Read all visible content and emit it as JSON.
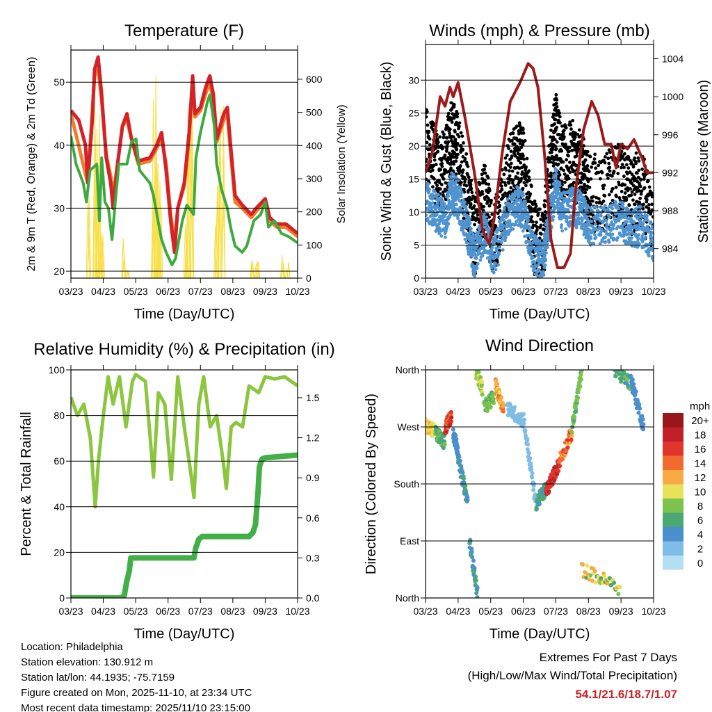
{
  "chart_data": [
    {
      "type": "line",
      "title": "Temperature (F)",
      "xlabel": "Time (Day/UTC)",
      "ylabel": "2m & 9m T (Red, Orange) & 2m Td (Green)",
      "y2label": "Solar Insolation (Yellow)",
      "xticks": [
        "03/23",
        "04/23",
        "05/23",
        "06/23",
        "07/23",
        "08/23",
        "09/23",
        "10/23"
      ],
      "yticks": [
        20,
        30,
        40,
        50
      ],
      "y2ticks": [
        0,
        100,
        200,
        300,
        400,
        500,
        600
      ],
      "ylim": [
        18.9,
        55.1
      ],
      "y2lim": [
        0,
        688
      ],
      "grid": true,
      "series": [
        {
          "name": "Solar Insolation",
          "axis": "y2",
          "color": "#f7e04a",
          "style": "spikes",
          "x": [
            0.55,
            0.72,
            0.78,
            0.85,
            0.95,
            1.62,
            1.75,
            2.55,
            2.62,
            2.68,
            2.75,
            3.55,
            3.65,
            3.75,
            4.5,
            4.6,
            4.7,
            5.6,
            5.75,
            6.55,
            6.7
          ],
          "y": [
            250,
            600,
            500,
            540,
            200,
            130,
            40,
            560,
            680,
            430,
            300,
            190,
            540,
            600,
            280,
            570,
            550,
            70,
            60,
            75,
            60
          ]
        },
        {
          "name": "9m T",
          "axis": "y",
          "color": "#f47b28",
          "width": 5,
          "x": [
            0,
            0.52,
            0.73,
            0.84,
            0.95,
            1.09,
            1.23,
            1.3,
            1.44,
            1.59,
            1.73,
            1.87,
            2.08,
            2.44,
            2.65,
            2.8,
            2.94,
            3.08,
            3.2,
            3.3,
            3.5,
            3.65,
            3.76,
            3.83,
            4.0,
            4.15,
            4.29,
            4.4,
            4.5,
            4.72,
            4.83,
            4.93,
            5.07,
            5.29,
            5.57,
            5.72,
            6.0,
            6.14,
            6.36,
            6.64,
            7.0
          ],
          "y": [
            45,
            34,
            51,
            52,
            47,
            38.5,
            35,
            32,
            37,
            43,
            44,
            41,
            37,
            37.5,
            39.5,
            41,
            37,
            29,
            24.5,
            30,
            33.5,
            41,
            50,
            44.5,
            45.5,
            48,
            50,
            47,
            40.5,
            44,
            45,
            39,
            31,
            30,
            28.5,
            29.5,
            31,
            28,
            27,
            27,
            25.5
          ]
        },
        {
          "name": "2m T",
          "axis": "y",
          "color": "#d42229",
          "width": 5,
          "x": [
            0,
            0.24,
            0.45,
            0.52,
            0.66,
            0.73,
            0.84,
            0.95,
            1.09,
            1.23,
            1.3,
            1.44,
            1.59,
            1.73,
            1.87,
            2.08,
            2.44,
            2.65,
            2.8,
            2.94,
            3.08,
            3.2,
            3.3,
            3.5,
            3.65,
            3.76,
            3.83,
            4.0,
            4.15,
            4.29,
            4.4,
            4.5,
            4.72,
            4.83,
            4.93,
            5.07,
            5.29,
            5.57,
            5.72,
            6.0,
            6.14,
            6.36,
            6.64,
            7.0
          ],
          "y": [
            45.5,
            44,
            40,
            34,
            44,
            52,
            54,
            48,
            38,
            34,
            30,
            37,
            43,
            45,
            41,
            37.5,
            38,
            40,
            42,
            36,
            28,
            23,
            30,
            34,
            42,
            51,
            45,
            46,
            49,
            51,
            48,
            41,
            45,
            46,
            40,
            32,
            30.5,
            29,
            30,
            31.5,
            28.5,
            27.5,
            27.5,
            26
          ]
        },
        {
          "name": "2m Td",
          "axis": "y",
          "color": "#3daa3f",
          "width": 4,
          "x": [
            0,
            0.16,
            0.38,
            0.48,
            0.59,
            0.8,
            0.88,
            0.95,
            1.05,
            1.16,
            1.27,
            1.37,
            1.48,
            1.73,
            1.87,
            2.01,
            2.12,
            2.44,
            2.55,
            2.69,
            2.8,
            2.94,
            3.12,
            3.23,
            3.44,
            3.58,
            3.79,
            3.86,
            4.0,
            4.22,
            4.29,
            4.43,
            4.5,
            4.65,
            4.83,
            4.93,
            5.07,
            5.29,
            5.43,
            5.65,
            5.86,
            6.0,
            6.1,
            6.28,
            6.5,
            6.72,
            7.0
          ],
          "y": [
            41.5,
            37,
            34,
            31,
            36,
            37,
            28,
            38,
            31,
            30,
            25,
            31,
            37,
            37,
            40.5,
            41,
            36,
            34,
            32,
            28,
            25,
            23,
            21,
            22,
            28,
            30.5,
            29,
            38,
            42,
            47,
            48,
            43,
            37,
            33,
            30,
            27,
            24,
            23,
            24,
            28,
            29,
            31,
            27,
            28,
            26,
            25.5,
            24.5
          ]
        }
      ]
    },
    {
      "type": "scatter",
      "title": "Winds (mph) & Pressure (mb)",
      "xlabel": "Time (Day/UTC)",
      "ylabel": "Sonic Wind & Gust (Blue, Black)",
      "y2label": "Station Pressure (Maroon)",
      "xticks": [
        "03/23",
        "04/23",
        "05/23",
        "06/23",
        "07/23",
        "08/23",
        "09/23",
        "10/23"
      ],
      "yticks": [
        0,
        5,
        10,
        15,
        20,
        25,
        30
      ],
      "y2ticks": [
        984,
        988,
        992,
        996,
        1000,
        1004
      ],
      "ylim": [
        0,
        35.4
      ],
      "y2lim": [
        980.9,
        1005.5
      ],
      "grid": true,
      "series": [
        {
          "name": "Gust",
          "axis": "y",
          "color": "#000000",
          "style": "scatter-band",
          "spread": 6,
          "x": [
            0,
            0.3,
            0.6,
            0.8,
            1.0,
            1.3,
            1.5,
            1.8,
            2.1,
            2.5,
            2.8,
            3.0,
            3.3,
            3.6,
            3.8,
            4.0,
            4.2,
            4.5,
            4.8,
            5.0,
            5.5,
            6.0,
            6.3,
            6.6,
            7.0
          ],
          "y": [
            20,
            17,
            16,
            22,
            19,
            12,
            6,
            12,
            6,
            15,
            18,
            17,
            7,
            4,
            15,
            23,
            17,
            18,
            16,
            13,
            13,
            15,
            12,
            14,
            8
          ]
        },
        {
          "name": "Sonic Wind",
          "axis": "y",
          "color": "#4f93cf",
          "style": "scatter-band",
          "spread": 3,
          "x": [
            0,
            0.3,
            0.6,
            0.8,
            1.0,
            1.3,
            1.5,
            1.8,
            2.1,
            2.5,
            2.8,
            3.0,
            3.3,
            3.6,
            3.8,
            4.0,
            4.2,
            4.5,
            4.8,
            5.0,
            5.5,
            6.0,
            6.3,
            6.6,
            7.0
          ],
          "y": [
            12,
            10,
            9,
            13,
            12,
            7,
            3,
            7,
            3,
            9,
            11,
            10,
            4,
            2,
            9,
            14,
            10,
            11,
            10,
            8,
            8,
            9,
            7,
            8,
            5
          ]
        },
        {
          "name": "Station Pressure",
          "axis": "y2",
          "color": "#9e1b1b",
          "width": 4,
          "x": [
            0,
            0.2,
            0.45,
            0.6,
            0.75,
            0.85,
            1.0,
            1.2,
            1.5,
            1.75,
            1.95,
            2.1,
            2.35,
            2.6,
            2.9,
            3.15,
            3.3,
            3.45,
            3.65,
            3.85,
            4.05,
            4.25,
            4.45,
            4.6,
            4.85,
            5.1,
            5.3,
            5.5,
            5.7,
            5.85,
            6.0,
            6.2,
            6.4,
            6.65,
            6.8,
            7.0
          ],
          "y": [
            992,
            994,
            1000,
            999,
            1001,
            1000,
            1001.5,
            998,
            992,
            986,
            984.5,
            987,
            994,
            999.5,
            1001.5,
            1003.5,
            1003,
            1001,
            994,
            985,
            982,
            982,
            983.5,
            990,
            996.5,
            999.5,
            998,
            995,
            995,
            992.5,
            995,
            994.5,
            995.5,
            993.5,
            992,
            992
          ]
        }
      ]
    },
    {
      "type": "line",
      "title": "Relative Humidity (%) & Precipitation (in)",
      "xlabel": "Time (Day/UTC)",
      "ylabel": "Percent & Total Rainfall",
      "y2label": "",
      "xticks": [
        "03/23",
        "04/23",
        "05/23",
        "06/23",
        "07/23",
        "08/23",
        "09/23",
        "10/23"
      ],
      "yticks": [
        0,
        20,
        40,
        60,
        80,
        100
      ],
      "y2ticks": [
        "0.0",
        "0.3",
        "0.6",
        "0.9",
        "1.2",
        "1.5"
      ],
      "ylim": [
        0,
        100
      ],
      "y2lim": [
        0,
        1.708
      ],
      "grid": true,
      "series": [
        {
          "name": "Relative Humidity",
          "axis": "y",
          "color": "#8cc63f",
          "width": 5,
          "x": [
            0,
            0.2,
            0.4,
            0.6,
            0.75,
            0.85,
            1.0,
            1.15,
            1.3,
            1.5,
            1.7,
            1.9,
            2.0,
            2.3,
            2.55,
            2.7,
            2.9,
            3.1,
            3.3,
            3.5,
            3.7,
            3.8,
            3.95,
            4.1,
            4.3,
            4.5,
            4.7,
            4.8,
            4.95,
            5.1,
            5.3,
            5.5,
            5.8,
            6.0,
            6.3,
            6.6,
            6.8,
            7.0
          ],
          "y": [
            88,
            80,
            85,
            70,
            40,
            60,
            80,
            97,
            85,
            97,
            75,
            95,
            98,
            95,
            53,
            90,
            85,
            52,
            97,
            75,
            55,
            44,
            85,
            97,
            75,
            80,
            60,
            48,
            75,
            77,
            75,
            93,
            90,
            97,
            96,
            97,
            95,
            93
          ]
        },
        {
          "name": "Total Precipitation",
          "axis": "y2",
          "color": "#43b047",
          "width": 8,
          "x": [
            0,
            1.55,
            1.65,
            1.72,
            1.8,
            1.85,
            3.8,
            3.85,
            3.95,
            4.05,
            5.5,
            5.62,
            5.7,
            5.78,
            5.82,
            5.9,
            6.0,
            7.0
          ],
          "y": [
            0,
            0,
            0.02,
            0.12,
            0.2,
            0.3,
            0.3,
            0.37,
            0.44,
            0.46,
            0.46,
            0.49,
            0.55,
            0.8,
            0.98,
            1.04,
            1.05,
            1.07
          ]
        }
      ]
    },
    {
      "type": "scatter",
      "title": "Wind Direction",
      "xlabel": "Time (Day/UTC)",
      "ylabel": "Direction (Colored By Speed)",
      "xticks": [
        "03/23",
        "04/23",
        "05/23",
        "06/23",
        "07/23",
        "08/23",
        "09/23",
        "10/23"
      ],
      "yticks": [
        {
          "value": 0,
          "label": "North"
        },
        {
          "value": 90,
          "label": "East"
        },
        {
          "value": 180,
          "label": "South"
        },
        {
          "value": 270,
          "label": "West"
        },
        {
          "value": 360,
          "label": "North"
        }
      ],
      "ylim": [
        0,
        360
      ],
      "grid": true,
      "colorbar": {
        "title": "mph",
        "levels": [
          "20+",
          "18",
          "16",
          "14",
          "12",
          "10",
          "8",
          "6",
          "4",
          "2",
          "0"
        ],
        "colors": [
          "#98161c",
          "#c0202a",
          "#e0352a",
          "#f26a2e",
          "#f8ab45",
          "#e8e25a",
          "#7cc24e",
          "#4aa874",
          "#4a90cc",
          "#7fbde6",
          "#b3dff5"
        ]
      },
      "segments": [
        {
          "x": [
            0.0,
            0.3
          ],
          "dir": [
            272,
            262
          ],
          "speed": [
            9,
            12
          ]
        },
        {
          "x": [
            0.3,
            0.6
          ],
          "dir": [
            262,
            245
          ],
          "speed": [
            5,
            8
          ]
        },
        {
          "x": [
            0.6,
            0.8
          ],
          "dir": [
            268,
            288
          ],
          "speed": [
            13,
            18
          ]
        },
        {
          "x": [
            0.85,
            1.0
          ],
          "dir": [
            260,
            232
          ],
          "speed": [
            3,
            5
          ]
        },
        {
          "x": [
            1.0,
            1.3
          ],
          "dir": [
            220,
            150
          ],
          "speed": [
            3,
            6
          ]
        },
        {
          "x": [
            1.35,
            1.6
          ],
          "dir": [
            90,
            5
          ],
          "speed": [
            3,
            7
          ]
        },
        {
          "x": [
            1.55,
            1.75
          ],
          "dir": [
            358,
            330
          ],
          "speed": [
            7,
            11
          ]
        },
        {
          "x": [
            1.8,
            2.1
          ],
          "dir": [
            300,
            318
          ],
          "speed": [
            6,
            9
          ]
        },
        {
          "x": [
            2.15,
            2.4
          ],
          "dir": [
            335,
            298
          ],
          "speed": [
            10,
            15
          ]
        },
        {
          "x": [
            2.5,
            3.0
          ],
          "dir": [
            300,
            280
          ],
          "speed": [
            1,
            3
          ]
        },
        {
          "x": [
            3.0,
            3.4
          ],
          "dir": [
            285,
            145
          ],
          "speed": [
            1,
            3
          ]
        },
        {
          "x": [
            3.4,
            3.7
          ],
          "dir": [
            150,
            172
          ],
          "speed": [
            4,
            7
          ]
        },
        {
          "x": [
            3.7,
            4.1
          ],
          "dir": [
            168,
            212
          ],
          "speed": [
            15,
            19
          ]
        },
        {
          "x": [
            4.1,
            4.5
          ],
          "dir": [
            215,
            262
          ],
          "speed": [
            11,
            16
          ]
        },
        {
          "x": [
            4.5,
            4.8
          ],
          "dir": [
            268,
            360
          ],
          "speed": [
            6,
            9
          ]
        },
        {
          "x": [
            4.8,
            6.0
          ],
          "dir": [
            45,
            15
          ],
          "speed": [
            6,
            13
          ]
        },
        {
          "x": [
            5.8,
            6.4
          ],
          "dir": [
            360,
            335
          ],
          "speed": [
            4,
            8
          ]
        },
        {
          "x": [
            6.3,
            6.7
          ],
          "dir": [
            345,
            270
          ],
          "speed": [
            3,
            5
          ]
        }
      ]
    }
  ],
  "footer": {
    "lines": [
      "Location: Philadelphia",
      "Station elevation: 130.912 m",
      "Station lat/lon: 44.1935; -75.7159",
      "Figure created on Mon, 2025-11-10, at 23:34 UTC",
      "Most recent data timestamp: 2025/11/10 23:15:00"
    ],
    "extremes_title": "Extremes For Past 7 Days",
    "extremes_subtitle": "(High/Low/Max Wind/Total Precipitation)",
    "extremes_values": "54.1/21.6/18.7/1.07",
    "extremes_color": "#cc2229"
  }
}
